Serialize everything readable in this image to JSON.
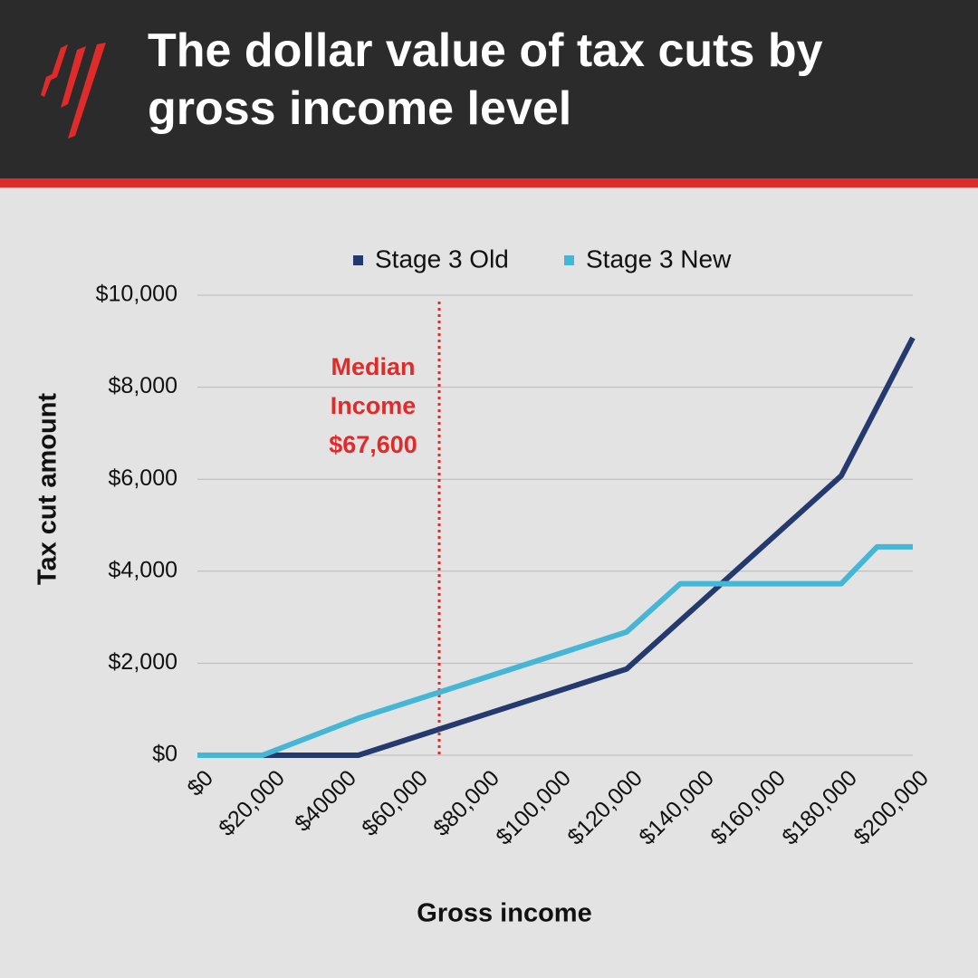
{
  "chart_data": {
    "type": "line",
    "title": "The dollar value of tax cuts by gross income level",
    "xlabel": "Gross income",
    "ylabel": "Tax cut amount",
    "series": [
      {
        "name": "Stage 3 Old",
        "color": "#243a6e",
        "x": [
          0,
          18200,
          45000,
          120000,
          180000,
          200000
        ],
        "values": [
          0,
          0,
          0,
          1875,
          6075,
          9075
        ]
      },
      {
        "name": "Stage 3 New",
        "color": "#45b6d6",
        "x": [
          0,
          18200,
          45000,
          120000,
          135000,
          180000,
          190000,
          200000
        ],
        "values": [
          0,
          0,
          804,
          2679,
          3729,
          3729,
          4529,
          4529
        ]
      }
    ],
    "xlim": [
      0,
      200000
    ],
    "xticks": [
      {
        "value": 0,
        "label": "$0"
      },
      {
        "value": 20000,
        "label": "$20,000"
      },
      {
        "value": 40000,
        "label": "$40000"
      },
      {
        "value": 60000,
        "label": "$60,000"
      },
      {
        "value": 80000,
        "label": "$80,000"
      },
      {
        "value": 100000,
        "label": "$100,000"
      },
      {
        "value": 120000,
        "label": "$120,000"
      },
      {
        "value": 140000,
        "label": "$140,000"
      },
      {
        "value": 160000,
        "label": "$160,000"
      },
      {
        "value": 180000,
        "label": "$180,000"
      },
      {
        "value": 200000,
        "label": "$200,000"
      }
    ],
    "ylim": [
      0,
      10000
    ],
    "yticks": [
      {
        "value": 0,
        "label": "$0"
      },
      {
        "value": 2000,
        "label": "$2,000"
      },
      {
        "value": 4000,
        "label": "$4,000"
      },
      {
        "value": 6000,
        "label": "$6,000"
      },
      {
        "value": 8000,
        "label": "$8,000"
      },
      {
        "value": 10000,
        "label": "$10,000"
      }
    ],
    "grid": true,
    "legend": "top",
    "annotation": {
      "x": 67600,
      "color": "#e02b2b",
      "lines": [
        "Median",
        "Income",
        "$67,600"
      ]
    }
  }
}
